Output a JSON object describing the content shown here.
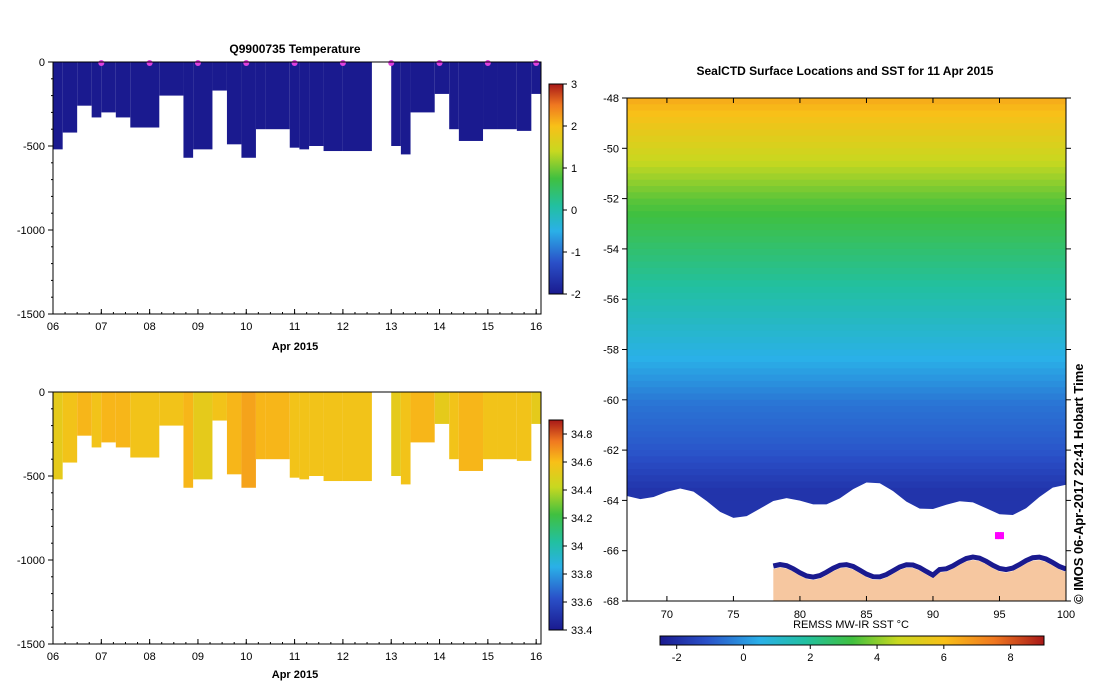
{
  "chart_data": [
    {
      "type": "heatmap",
      "name": "profile-temperature",
      "title": "Q9900735  Temperature",
      "xlabel": "Apr 2015",
      "ylabel": "",
      "x_ticks": [
        "06",
        "07",
        "08",
        "09",
        "10",
        "11",
        "12",
        "13",
        "14",
        "15",
        "16"
      ],
      "x_range": [
        6.0,
        16.1
      ],
      "y_ticks": [
        0,
        -500,
        -1000,
        -1500
      ],
      "ylim": [
        -1500,
        0
      ],
      "profile_start_day": [
        6.0,
        6.2,
        6.5,
        6.8,
        7.0,
        7.3,
        7.6,
        8.2,
        8.7,
        8.9,
        9.3,
        9.6,
        9.9,
        10.2,
        10.4,
        10.9,
        11.1,
        11.3,
        11.6,
        12.0,
        12.6,
        13.0,
        13.2,
        13.4,
        13.9,
        14.2,
        14.4,
        14.9,
        15.2,
        15.6,
        15.9
      ],
      "profile_max_depth": [
        520,
        420,
        260,
        330,
        300,
        330,
        390,
        200,
        570,
        520,
        170,
        490,
        570,
        400,
        400,
        510,
        520,
        500,
        530,
        530,
        0,
        500,
        550,
        300,
        190,
        400,
        470,
        400,
        400,
        410,
        190
      ],
      "surface_markers_day": [
        7.0,
        8.0,
        9.0,
        10.0,
        11.0,
        12.0,
        13.0,
        14.0,
        15.0,
        16.0
      ],
      "colorbar": {
        "min": -2,
        "max": 3,
        "ticks": [
          3,
          2,
          1,
          0,
          -1,
          -2
        ]
      },
      "profile_mean_value": [
        -2.0,
        -2.0,
        -2.0,
        -2.0,
        -2.0,
        -2.0,
        -2.0,
        -2.0,
        -2.0,
        -2.0,
        -2.0,
        -2.0,
        -2.0,
        -2.0,
        -2.0,
        -2.0,
        -2.0,
        -2.0,
        -2.0,
        -2.0,
        -2.0,
        -2.0,
        -2.0,
        -2.0,
        -2.0,
        -2.0,
        -2.0,
        -2.0,
        -2.0,
        -2.0,
        -2.0
      ]
    },
    {
      "type": "heatmap",
      "name": "profile-salinity",
      "title": "",
      "xlabel": "Apr 2015",
      "ylabel": "",
      "x_ticks": [
        "06",
        "07",
        "08",
        "09",
        "10",
        "11",
        "12",
        "13",
        "14",
        "15",
        "16"
      ],
      "x_range": [
        6.0,
        16.1
      ],
      "y_ticks": [
        0,
        -500,
        -1000,
        -1500
      ],
      "ylim": [
        -1500,
        0
      ],
      "profile_start_day": [
        6.0,
        6.2,
        6.5,
        6.8,
        7.0,
        7.3,
        7.6,
        8.2,
        8.7,
        8.9,
        9.3,
        9.6,
        9.9,
        10.2,
        10.4,
        10.9,
        11.1,
        11.3,
        11.6,
        12.0,
        12.6,
        13.0,
        13.2,
        13.4,
        13.9,
        14.2,
        14.4,
        14.9,
        15.2,
        15.6,
        15.9
      ],
      "profile_max_depth": [
        520,
        420,
        260,
        330,
        300,
        330,
        390,
        200,
        570,
        520,
        170,
        490,
        570,
        400,
        400,
        510,
        520,
        500,
        530,
        530,
        0,
        500,
        550,
        300,
        190,
        400,
        470,
        400,
        400,
        410,
        190
      ],
      "profile_mean_value": [
        34.45,
        34.5,
        34.55,
        34.5,
        34.55,
        34.55,
        34.5,
        34.5,
        34.55,
        34.45,
        34.5,
        34.55,
        34.6,
        34.55,
        34.55,
        34.5,
        34.5,
        34.5,
        34.5,
        34.5,
        34.5,
        34.45,
        34.5,
        34.55,
        34.45,
        34.5,
        34.55,
        34.5,
        34.5,
        34.5,
        34.45
      ],
      "colorbar": {
        "min": 33.4,
        "max": 34.9,
        "ticks": [
          34.8,
          34.6,
          34.4,
          34.2,
          34,
          33.8,
          33.6,
          33.4
        ]
      }
    },
    {
      "type": "heatmap",
      "name": "sst-map",
      "title": "SealCTD Surface Locations and SST for 11 Apr 2015",
      "xlabel": "REMSS MW-IR SST °C",
      "x_ticks": [
        70,
        75,
        80,
        85,
        90,
        95,
        100
      ],
      "xlim": [
        67,
        100
      ],
      "y_ticks": [
        -48,
        -50,
        -52,
        -54,
        -56,
        -58,
        -60,
        -62,
        -64,
        -66,
        -68
      ],
      "ylim": [
        -68,
        -48
      ],
      "colorbar": {
        "min": -2.5,
        "max": 9,
        "ticks": [
          -2,
          0,
          2,
          4,
          6,
          8
        ]
      },
      "sst_rows_lat": [
        -48,
        -50,
        -52,
        -54,
        -56,
        -58,
        -60,
        -62,
        -63.5
      ],
      "sst_rows_value": [
        6.5,
        5.0,
        3.5,
        2.5,
        1.5,
        0.5,
        -0.5,
        -1.0,
        -1.8
      ],
      "ice_edge_lat": -64,
      "continent_top_lat": -66.8,
      "seal_locations": [
        {
          "lon": 95.0,
          "lat": -65.4
        }
      ]
    }
  ],
  "side_label": "© IMOS 06-Apr-2017 22:41 Hobart Time"
}
